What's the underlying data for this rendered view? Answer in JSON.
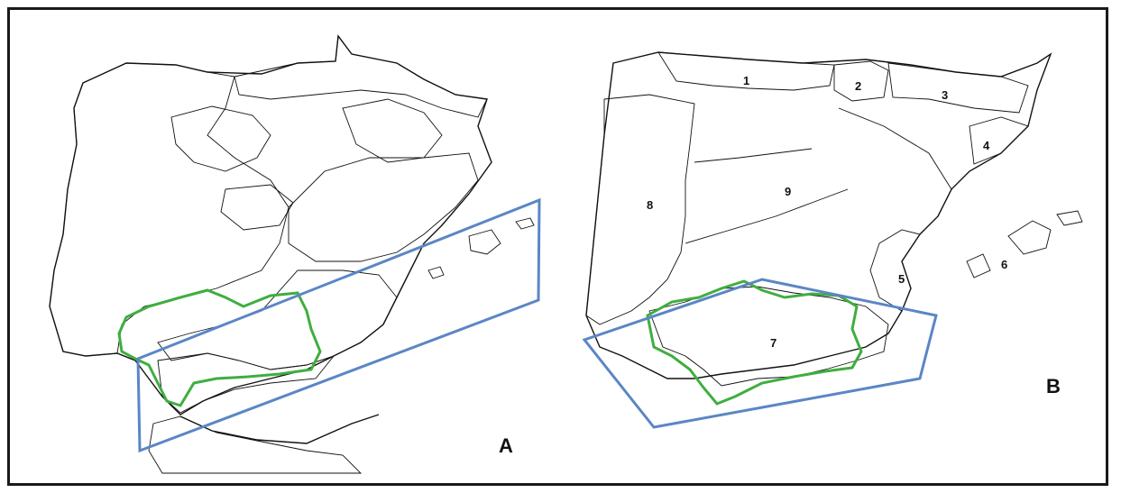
{
  "panels": {
    "a": {
      "label": "A"
    },
    "b": {
      "label": "B"
    }
  },
  "regions_b": [
    {
      "id": "1",
      "label": "1"
    },
    {
      "id": "2",
      "label": "2"
    },
    {
      "id": "3",
      "label": "3"
    },
    {
      "id": "4",
      "label": "4"
    },
    {
      "id": "5",
      "label": "5"
    },
    {
      "id": "6",
      "label": "6"
    },
    {
      "id": "7",
      "label": "7"
    },
    {
      "id": "8",
      "label": "8"
    },
    {
      "id": "9",
      "label": "9"
    }
  ],
  "colors": {
    "highlight_box": "#5b86c5",
    "andalusia_outline": "#3fae3f",
    "ink": "#111111"
  }
}
